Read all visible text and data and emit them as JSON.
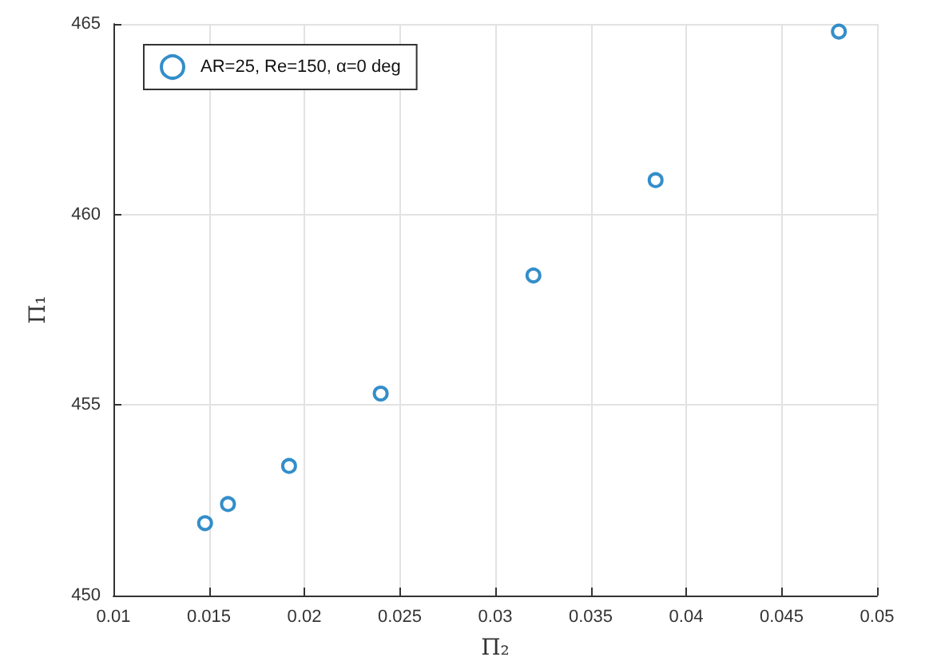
{
  "chart_data": {
    "type": "scatter",
    "xlabel": "Π₂",
    "ylabel": "Π₁",
    "x": [
      0.0148,
      0.016,
      0.0192,
      0.024,
      0.032,
      0.0384,
      0.048
    ],
    "series": [
      {
        "name": "AR=25, Re=150, α=0 deg",
        "color": "#0072bd",
        "values": [
          451.9,
          452.4,
          453.4,
          455.3,
          458.4,
          460.9,
          464.8
        ]
      }
    ],
    "xlim": [
      0.01,
      0.05
    ],
    "xticks": [
      0.01,
      0.015,
      0.02,
      0.025,
      0.03,
      0.035,
      0.04,
      0.045,
      0.05
    ],
    "ylim": [
      450,
      465
    ],
    "yticks": [
      450,
      455,
      460,
      465
    ],
    "grid": true,
    "legend": "top left",
    "marker": "circle"
  }
}
